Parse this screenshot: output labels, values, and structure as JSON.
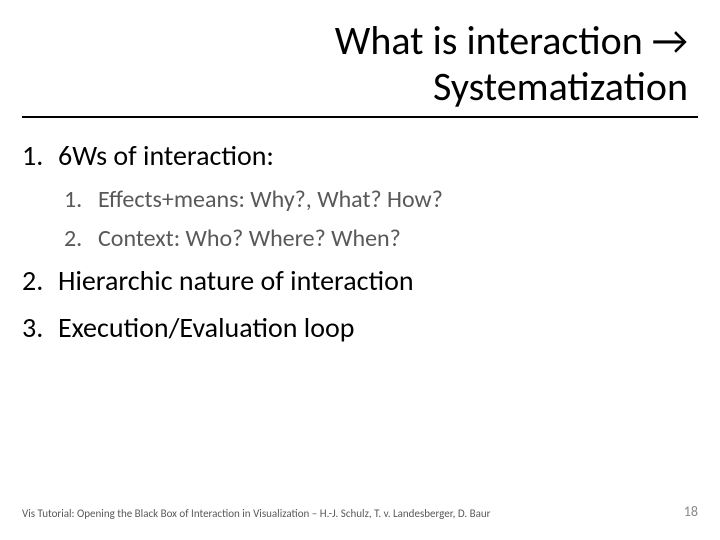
{
  "title": {
    "line1": "What is interaction →",
    "line2": "Systematization"
  },
  "list": {
    "items": [
      {
        "num": "1.",
        "text": "6Ws of interaction:"
      },
      {
        "num": "2.",
        "text": "Hierarchic nature of interaction"
      },
      {
        "num": "3.",
        "text": "Execution/Evaluation loop"
      }
    ],
    "subitems": [
      {
        "num": "1.",
        "text": "Effects+means: Why?, What? How?"
      },
      {
        "num": "2.",
        "text": "Context: Who? Where? When?"
      }
    ]
  },
  "footer": {
    "text": "Vis Tutorial: Opening the Black Box of Interaction in Visualization – H.-J. Schulz, T. v. Landesberger, D. Baur",
    "page": "18"
  },
  "colors": {
    "text_primary": "#000000",
    "text_secondary": "#595959",
    "page_num": "#898989",
    "background": "#ffffff",
    "underline": "#000000"
  },
  "fonts": {
    "title_size_pt": 40,
    "lvl1_size_pt": 28,
    "lvl2_size_pt": 24,
    "footer_size_pt": 11
  }
}
